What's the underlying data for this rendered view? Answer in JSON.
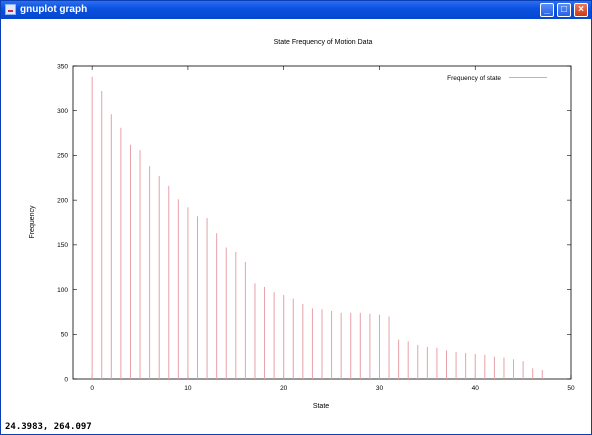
{
  "window": {
    "title": "gnuplot graph",
    "minimize_symbol": "_",
    "maximize_symbol": "□",
    "close_symbol": "×"
  },
  "status": {
    "coordinates": "24.3983, 264.097"
  },
  "colors": {
    "titlebar": "#0a52e0",
    "impulse": "#e8a0a8",
    "axis": "#000000"
  },
  "chart_data": {
    "type": "bar",
    "style": "impulses",
    "title": "State Frequency of Motion Data",
    "xlabel": "State",
    "ylabel": "Frequency",
    "xlim": [
      -2,
      50
    ],
    "ylim": [
      0,
      350
    ],
    "xticks": [
      0,
      10,
      20,
      30,
      40,
      50
    ],
    "yticks": [
      0,
      50,
      100,
      150,
      200,
      250,
      300,
      350
    ],
    "grid": false,
    "legend_position": "top-right",
    "series": [
      {
        "name": "Frequency of state",
        "x": [
          0,
          1,
          2,
          3,
          4,
          5,
          6,
          7,
          8,
          9,
          10,
          11,
          12,
          13,
          14,
          15,
          16,
          17,
          18,
          19,
          20,
          21,
          22,
          23,
          24,
          25,
          26,
          27,
          28,
          29,
          30,
          31,
          32,
          33,
          34,
          35,
          36,
          37,
          38,
          39,
          40,
          41,
          42,
          43,
          44,
          45,
          46,
          47
        ],
        "values": [
          338,
          322,
          296,
          281,
          262,
          256,
          238,
          227,
          216,
          201,
          192,
          182,
          180,
          163,
          147,
          142,
          131,
          107,
          103,
          97,
          94,
          90,
          84,
          79,
          78,
          76,
          74,
          74,
          74,
          73,
          72,
          70,
          44,
          42,
          38,
          36,
          35,
          32,
          30,
          29,
          28,
          27,
          25,
          24,
          22,
          20,
          12,
          10
        ]
      }
    ]
  }
}
